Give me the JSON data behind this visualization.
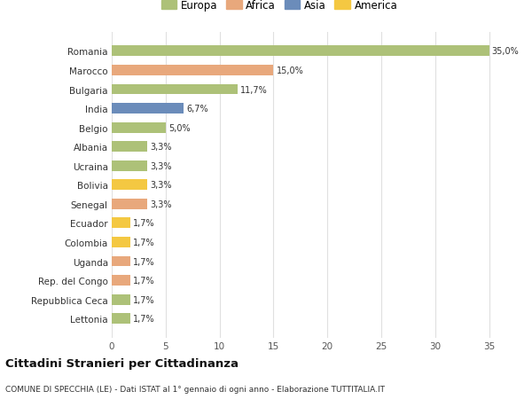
{
  "categories": [
    "Lettonia",
    "Repubblica Ceca",
    "Rep. del Congo",
    "Uganda",
    "Colombia",
    "Ecuador",
    "Senegal",
    "Bolivia",
    "Ucraina",
    "Albania",
    "Belgio",
    "India",
    "Bulgaria",
    "Marocco",
    "Romania"
  ],
  "values": [
    1.7,
    1.7,
    1.7,
    1.7,
    1.7,
    1.7,
    3.3,
    3.3,
    3.3,
    3.3,
    5.0,
    6.7,
    11.7,
    15.0,
    35.0
  ],
  "colors": [
    "#adc178",
    "#adc178",
    "#e8a87c",
    "#e8a87c",
    "#f4c842",
    "#f4c842",
    "#e8a87c",
    "#f4c842",
    "#adc178",
    "#adc178",
    "#adc178",
    "#6b8cba",
    "#adc178",
    "#e8a87c",
    "#adc178"
  ],
  "labels": [
    "1,7%",
    "1,7%",
    "1,7%",
    "1,7%",
    "1,7%",
    "1,7%",
    "3,3%",
    "3,3%",
    "3,3%",
    "3,3%",
    "5,0%",
    "6,7%",
    "11,7%",
    "15,0%",
    "35,0%"
  ],
  "legend": [
    {
      "label": "Europa",
      "color": "#adc178"
    },
    {
      "label": "Africa",
      "color": "#e8a87c"
    },
    {
      "label": "Asia",
      "color": "#6b8cba"
    },
    {
      "label": "America",
      "color": "#f4c842"
    }
  ],
  "title": "Cittadini Stranieri per Cittadinanza",
  "subtitle": "COMUNE DI SPECCHIA (LE) - Dati ISTAT al 1° gennaio di ogni anno - Elaborazione TUTTITALIA.IT",
  "xlim": [
    0,
    37
  ],
  "background_color": "#ffffff",
  "grid_color": "#e0e0e0",
  "bar_height": 0.55
}
